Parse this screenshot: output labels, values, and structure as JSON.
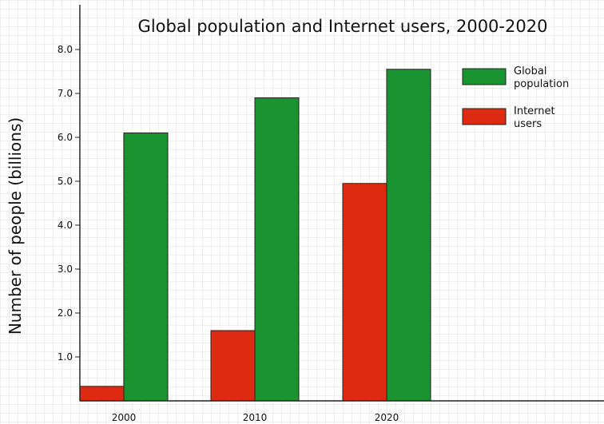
{
  "chart_data": {
    "type": "bar",
    "title": "Global population and Internet users, 2000-2020",
    "xlabel": "",
    "ylabel": "Number of people (billions)",
    "categories": [
      "2000",
      "2010",
      "2020"
    ],
    "series": [
      {
        "name": "Internet users",
        "values": [
          0.33,
          1.6,
          4.95
        ],
        "color": "#dd2a10"
      },
      {
        "name": "Global population",
        "values": [
          6.1,
          6.9,
          7.55
        ],
        "color": "#1a9430"
      }
    ],
    "y_ticks": [
      "1.0",
      "2.0",
      "3.0",
      "4.0",
      "5.0",
      "6.0",
      "7.0",
      "8.0"
    ],
    "ylim": [
      0,
      8.8
    ],
    "grid": true,
    "legend": {
      "position": "top-right",
      "order": [
        {
          "lines": [
            "Global",
            "population"
          ],
          "color": "#1a9430"
        },
        {
          "lines": [
            "Internet",
            "users"
          ],
          "color": "#dd2a10"
        }
      ]
    }
  }
}
